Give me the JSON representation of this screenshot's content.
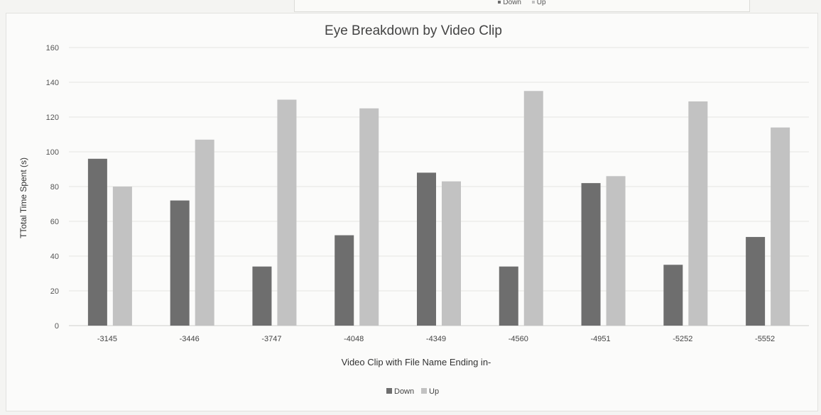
{
  "top_legend": {
    "items": [
      {
        "label": "Down",
        "color": "#6e6e6e"
      },
      {
        "label": "Up",
        "color": "#c2c2c2"
      }
    ]
  },
  "chart_data": {
    "type": "bar",
    "title": "Eye Breakdown by Video Clip",
    "xlabel": "Video Clip with File Name Ending in-",
    "ylabel": "TTotal Time Spent (s)",
    "categories": [
      "-3145",
      "-3446",
      "-3747",
      "-4048",
      "-4349",
      "-4560",
      "-4951",
      "-5252",
      "-5552"
    ],
    "series": [
      {
        "name": "Down",
        "color": "#6e6e6e",
        "values": [
          96,
          72,
          34,
          52,
          88,
          34,
          82,
          35,
          51
        ]
      },
      {
        "name": "Up",
        "color": "#c2c2c2",
        "values": [
          80,
          107,
          130,
          125,
          83,
          135,
          86,
          129,
          114
        ]
      }
    ],
    "ylim": [
      0,
      160
    ],
    "yticks": [
      0,
      20,
      40,
      60,
      80,
      100,
      120,
      140,
      160
    ],
    "grid": true,
    "legend_position": "bottom"
  }
}
